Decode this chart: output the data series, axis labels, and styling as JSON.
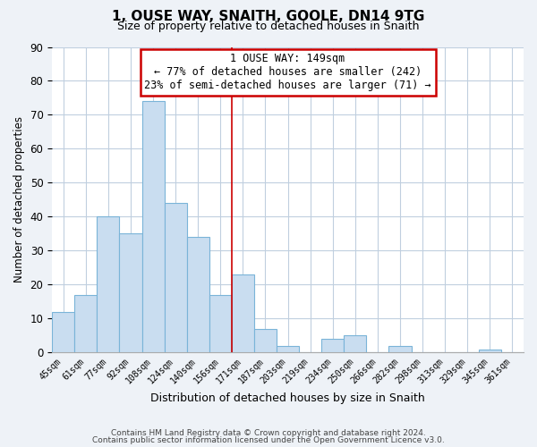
{
  "title": "1, OUSE WAY, SNAITH, GOOLE, DN14 9TG",
  "subtitle": "Size of property relative to detached houses in Snaith",
  "xlabel": "Distribution of detached houses by size in Snaith",
  "ylabel": "Number of detached properties",
  "categories": [
    "45sqm",
    "61sqm",
    "77sqm",
    "92sqm",
    "108sqm",
    "124sqm",
    "140sqm",
    "156sqm",
    "171sqm",
    "187sqm",
    "203sqm",
    "219sqm",
    "234sqm",
    "250sqm",
    "266sqm",
    "282sqm",
    "298sqm",
    "313sqm",
    "329sqm",
    "345sqm",
    "361sqm"
  ],
  "values": [
    12,
    17,
    40,
    35,
    74,
    44,
    34,
    17,
    23,
    7,
    2,
    0,
    4,
    5,
    0,
    2,
    0,
    0,
    0,
    1,
    0
  ],
  "bar_color": "#c9ddf0",
  "bar_edge_color": "#7ab4d8",
  "ylim": [
    0,
    90
  ],
  "yticks": [
    0,
    10,
    20,
    30,
    40,
    50,
    60,
    70,
    80,
    90
  ],
  "annotation_line1": "1 OUSE WAY: 149sqm",
  "annotation_line2": "← 77% of detached houses are smaller (242)",
  "annotation_line3": "23% of semi-detached houses are larger (71) →",
  "annotation_box_color": "#ffffff",
  "annotation_box_edge_color": "#cc0000",
  "ref_line_x": 7.5,
  "footer_line1": "Contains HM Land Registry data © Crown copyright and database right 2024.",
  "footer_line2": "Contains public sector information licensed under the Open Government Licence v3.0.",
  "background_color": "#eef2f7",
  "plot_background_color": "#ffffff",
  "grid_color": "#c0cfdf"
}
